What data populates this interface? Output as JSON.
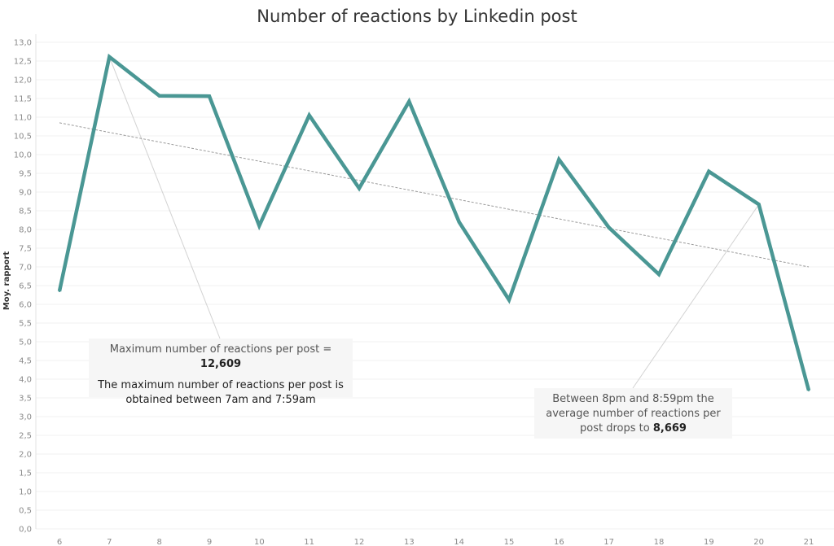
{
  "chart_data": {
    "type": "line",
    "title": "Number of reactions by Linkedin post",
    "ylabel": "Moy. rapport",
    "xlabel": "",
    "x": [
      6,
      7,
      8,
      9,
      10,
      11,
      12,
      13,
      14,
      15,
      16,
      17,
      18,
      19,
      20,
      21
    ],
    "x_tick_labels": [
      "6",
      "7",
      "8",
      "9",
      "10",
      "11",
      "12",
      "13",
      "14",
      "15",
      "16",
      "17",
      "18",
      "19",
      "20",
      "21"
    ],
    "values": [
      6.35,
      12.61,
      11.57,
      11.56,
      8.1,
      11.05,
      9.1,
      11.42,
      8.2,
      6.12,
      9.87,
      8.05,
      6.8,
      9.55,
      8.669,
      3.7
    ],
    "trend": {
      "start": [
        6,
        10.85
      ],
      "end": [
        21,
        7.0
      ]
    },
    "ylim": [
      0,
      13
    ],
    "y_tick_labels": [
      "0,0",
      "0,5",
      "1,0",
      "1,5",
      "2,0",
      "2,5",
      "3,0",
      "3,5",
      "4,0",
      "4,5",
      "5,0",
      "5,5",
      "6,0",
      "6,5",
      "7,0",
      "7,5",
      "8,0",
      "8,5",
      "9,0",
      "9,5",
      "10,0",
      "10,5",
      "11,0",
      "11,5",
      "12,0",
      "12,5",
      "13,0"
    ],
    "grid": true,
    "line_color": "#4a9794",
    "trend_color": "#9a9a9a",
    "annotations": [
      {
        "point_x": 7,
        "line1_prefix": "Maximum number of reactions per post = ",
        "line1_value": "12,609",
        "line2": "The maximum number of reactions per post is",
        "line3": "obtained between 7am and 7:59am"
      },
      {
        "point_x": 20,
        "line1": "Between 8pm and 8:59pm the",
        "line2": "average number of reactions per",
        "line3_prefix": "post drops to ",
        "line3_value": "8,669"
      }
    ]
  }
}
